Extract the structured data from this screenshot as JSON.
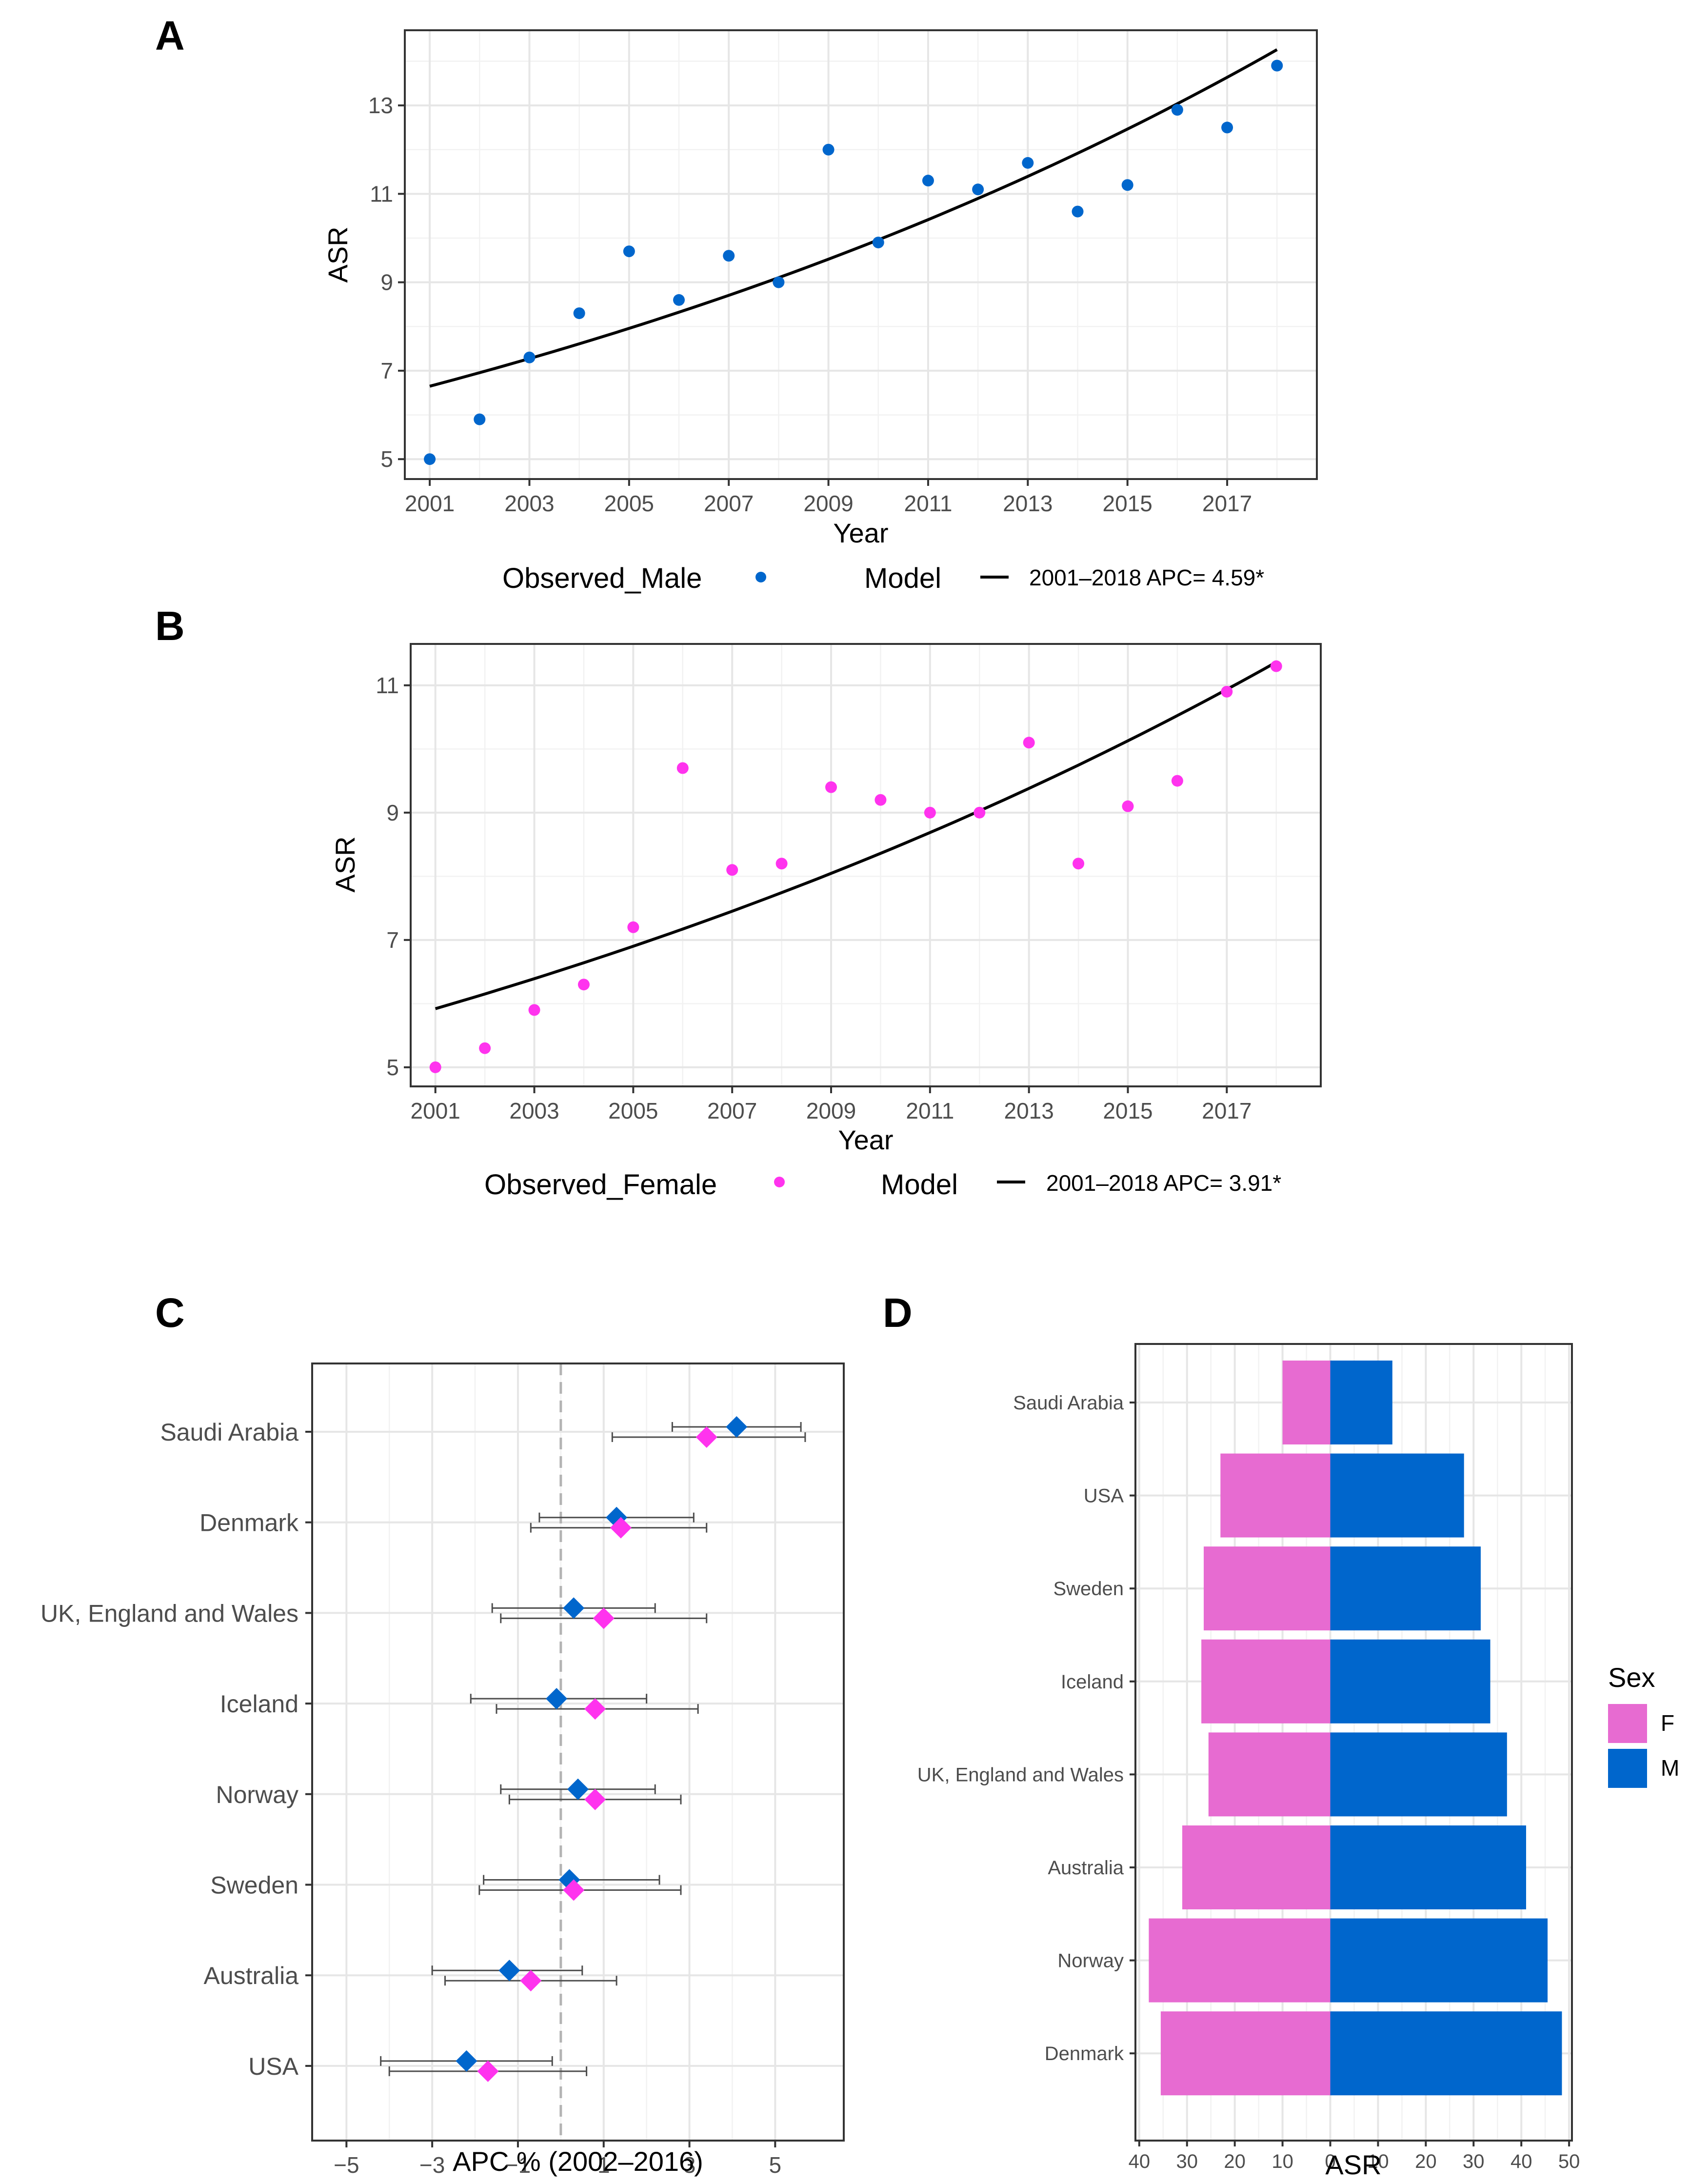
{
  "chart_data": [
    {
      "panel": "A",
      "type": "scatter",
      "xlabel": "Year",
      "ylabel": "ASR",
      "xticks": [
        2001,
        2003,
        2005,
        2007,
        2009,
        2011,
        2013,
        2015,
        2017
      ],
      "yticks": [
        5,
        7,
        9,
        11,
        13
      ],
      "xlim": [
        2000.5,
        2018.8
      ],
      "ylim": [
        4.55,
        14.7
      ],
      "point_color": "#0066cc",
      "series": [
        {
          "name": "Observed_Male",
          "x": [
            2001,
            2002,
            2003,
            2004,
            2005,
            2006,
            2007,
            2008,
            2009,
            2010,
            2011,
            2012,
            2013,
            2014,
            2015,
            2016,
            2017,
            2018
          ],
          "y": [
            5.0,
            5.9,
            7.3,
            8.3,
            9.7,
            8.6,
            9.6,
            9.0,
            12.0,
            9.9,
            11.3,
            11.1,
            11.7,
            10.6,
            11.2,
            12.9,
            12.5,
            13.9
          ]
        }
      ],
      "model": {
        "start": 2001,
        "end": 2018,
        "base": 6.65,
        "apc": 4.59
      },
      "legend": {
        "observed": "Observed_Male",
        "model": "Model",
        "model_label": "2001–2018 APC= 4.59*"
      }
    },
    {
      "panel": "B",
      "type": "scatter",
      "xlabel": "Year",
      "ylabel": "ASR",
      "xticks": [
        2001,
        2003,
        2005,
        2007,
        2009,
        2011,
        2013,
        2015,
        2017
      ],
      "yticks": [
        5,
        7,
        9,
        11
      ],
      "xlim": [
        2000.5,
        2018.9
      ],
      "ylim": [
        4.7,
        11.65
      ],
      "point_color": "#ff33ee",
      "series": [
        {
          "name": "Observed_Female",
          "x": [
            2001,
            2002,
            2003,
            2004,
            2005,
            2006,
            2007,
            2008,
            2009,
            2010,
            2011,
            2012,
            2013,
            2014,
            2015,
            2016,
            2017,
            2018
          ],
          "y": [
            5.0,
            5.3,
            5.9,
            6.3,
            7.2,
            9.7,
            8.1,
            8.2,
            9.4,
            9.2,
            9.0,
            9.0,
            10.1,
            8.2,
            9.1,
            9.5,
            10.9,
            11.3
          ]
        }
      ],
      "model": {
        "start": 2001,
        "end": 2018,
        "base": 5.92,
        "apc": 3.91
      },
      "legend": {
        "observed": "Observed_Female",
        "model": "Model",
        "model_label": "2001–2018 APC= 3.91*"
      }
    },
    {
      "panel": "C",
      "type": "scatter",
      "subtype": "forest",
      "xlabel": "APC % (2002–2016)",
      "xticks": [
        -5,
        -3,
        -1,
        1,
        3,
        5
      ],
      "xtick_labels": [
        "−5",
        "−3",
        "−1",
        "1",
        "3",
        "5"
      ],
      "xlim": [
        -5.8,
        6.6
      ],
      "reference_line": 0,
      "categories": [
        "Saudi Arabia",
        "Denmark",
        "UK, England and Wales",
        "Iceland",
        "Norway",
        "Sweden",
        "Australia",
        "USA"
      ],
      "series": [
        {
          "name": "M",
          "color": "#0066cc",
          "values": [
            4.1,
            1.3,
            0.3,
            -0.1,
            0.4,
            0.2,
            -1.2,
            -2.2
          ],
          "lower": [
            2.6,
            -0.5,
            -1.6,
            -2.1,
            -1.4,
            -1.8,
            -3.0,
            -4.2
          ],
          "upper": [
            5.6,
            3.1,
            2.2,
            2.0,
            2.2,
            2.3,
            0.5,
            -0.2
          ]
        },
        {
          "name": "F",
          "color": "#ff33ee",
          "values": [
            3.4,
            1.4,
            1.0,
            0.8,
            0.8,
            0.3,
            -0.7,
            -1.7
          ],
          "lower": [
            1.2,
            -0.7,
            -1.4,
            -1.5,
            -1.2,
            -1.9,
            -2.7,
            -4.0
          ],
          "upper": [
            5.7,
            3.4,
            3.4,
            3.2,
            2.8,
            2.8,
            1.3,
            0.6
          ]
        }
      ]
    },
    {
      "panel": "D",
      "type": "bar",
      "subtype": "population-pyramid",
      "xlabel": "ASR",
      "xticks": [
        -40,
        -30,
        -20,
        -10,
        0,
        10,
        20,
        30,
        40,
        50
      ],
      "xtick_labels": [
        "40",
        "30",
        "20",
        "10",
        "0",
        "10",
        "20",
        "30",
        "40",
        "50"
      ],
      "xlim": [
        -40.8,
        50.6
      ],
      "categories": [
        "Saudi Arabia",
        "USA",
        "Sweden",
        "Iceland",
        "UK, England and Wales",
        "Australia",
        "Norway",
        "Denmark"
      ],
      "series": [
        {
          "name": "F",
          "color": "#e76bd1",
          "values": [
            10,
            23,
            26.5,
            27,
            25.5,
            31,
            38,
            35.5
          ]
        },
        {
          "name": "M",
          "color": "#0066cc",
          "values": [
            13,
            28,
            31.5,
            33.5,
            37,
            41,
            45.5,
            48.5
          ]
        }
      ],
      "legend": {
        "title": "Sex",
        "items": [
          "F",
          "M"
        ]
      }
    }
  ]
}
